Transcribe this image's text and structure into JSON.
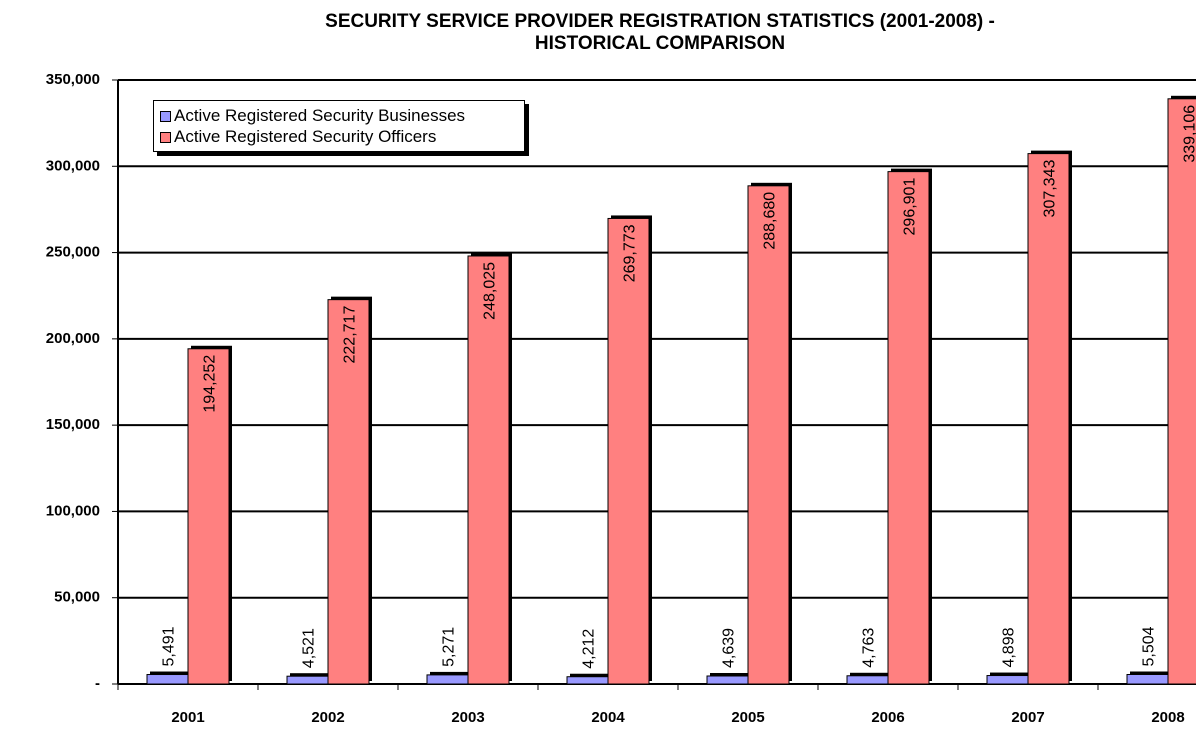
{
  "chart_data": {
    "type": "bar",
    "title": [
      "SECURITY SERVICE PROVIDER REGISTRATION STATISTICS (2001-2008) -",
      "HISTORICAL COMPARISON"
    ],
    "categories": [
      "2001",
      "2002",
      "2003",
      "2004",
      "2005",
      "2006",
      "2007",
      "2008"
    ],
    "series": [
      {
        "name": "Active Registered Security Businesses",
        "color": "#9999ff",
        "values": [
          5491,
          4521,
          5271,
          4212,
          4639,
          4763,
          4898,
          5504
        ],
        "value_labels": [
          "5,491",
          "4,521",
          "5,271",
          "4,212",
          "4,639",
          "4,763",
          "4,898",
          "5,504"
        ]
      },
      {
        "name": "Active Registered Security Officers",
        "color": "#ff8080",
        "values": [
          194252,
          222717,
          248025,
          269773,
          288680,
          296901,
          307343,
          339106
        ],
        "value_labels": [
          "194,252",
          "222,717",
          "248,025",
          "269,773",
          "288,680",
          "296,901",
          "307,343",
          "339,106"
        ]
      }
    ],
    "ylim": [
      0,
      350000
    ],
    "yticks": [
      {
        "value": 0,
        "label": "-"
      },
      {
        "value": 50000,
        "label": "50,000"
      },
      {
        "value": 100000,
        "label": "100,000"
      },
      {
        "value": 150000,
        "label": "150,000"
      },
      {
        "value": 200000,
        "label": "200,000"
      },
      {
        "value": 250000,
        "label": "250,000"
      },
      {
        "value": 300000,
        "label": "300,000"
      },
      {
        "value": 350000,
        "label": "350,000"
      }
    ],
    "grid": true,
    "legend": "upper left"
  }
}
